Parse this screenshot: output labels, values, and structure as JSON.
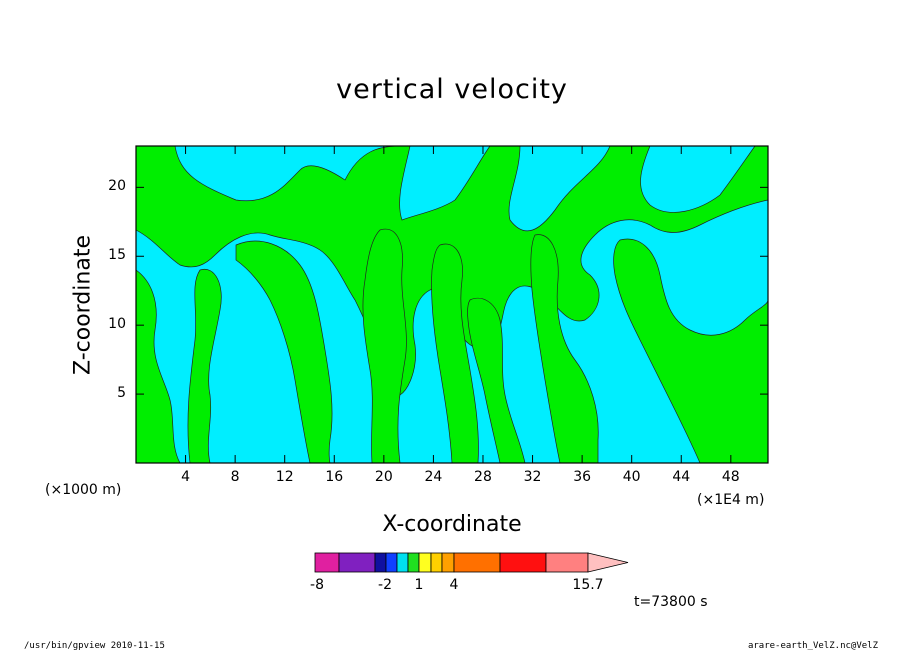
{
  "chart_data": {
    "type": "heatmap",
    "title": "vertical velocity",
    "xlabel": "X-coordinate",
    "ylabel": "Z-coordinate",
    "x_unit_left": "(×1000 m)",
    "x_unit_right": "(×1E4 m)",
    "xlim": [
      0,
      51
    ],
    "ylim": [
      0,
      23
    ],
    "x_ticks": [
      4,
      8,
      12,
      16,
      20,
      24,
      28,
      32,
      36,
      40,
      44,
      48
    ],
    "y_ticks": [
      5,
      10,
      15,
      20
    ],
    "x_tick_labels": [
      "4",
      "8",
      "12",
      "16",
      "20",
      "24",
      "28",
      "32",
      "36",
      "40",
      "44",
      "48"
    ],
    "y_tick_labels": [
      "5",
      "10",
      "15",
      "20"
    ],
    "colorbar": {
      "labels": [
        {
          "text": "-8",
          "value": -8
        },
        {
          "text": "-2",
          "value": -2
        },
        {
          "text": "1",
          "value": 1
        },
        {
          "text": "4",
          "value": 4
        },
        {
          "text": "15.7",
          "value": 15.7
        }
      ],
      "colors": [
        "#e020a0",
        "#8020c0",
        "#1010a0",
        "#1040ff",
        "#00e0f0",
        "#20e020",
        "#ffff20",
        "#ffd000",
        "#ffa000",
        "#ff7000",
        "#ff1010",
        "#ff8080",
        "#ffc0c0"
      ]
    },
    "field_colors": {
      "negative": "#00eeff",
      "positive": "#00ee00"
    },
    "time_label": "t=73800 s"
  },
  "footer": {
    "left": "/usr/bin/gpview   2010-11-15",
    "right": "arare-earth_VelZ.nc@VelZ"
  }
}
